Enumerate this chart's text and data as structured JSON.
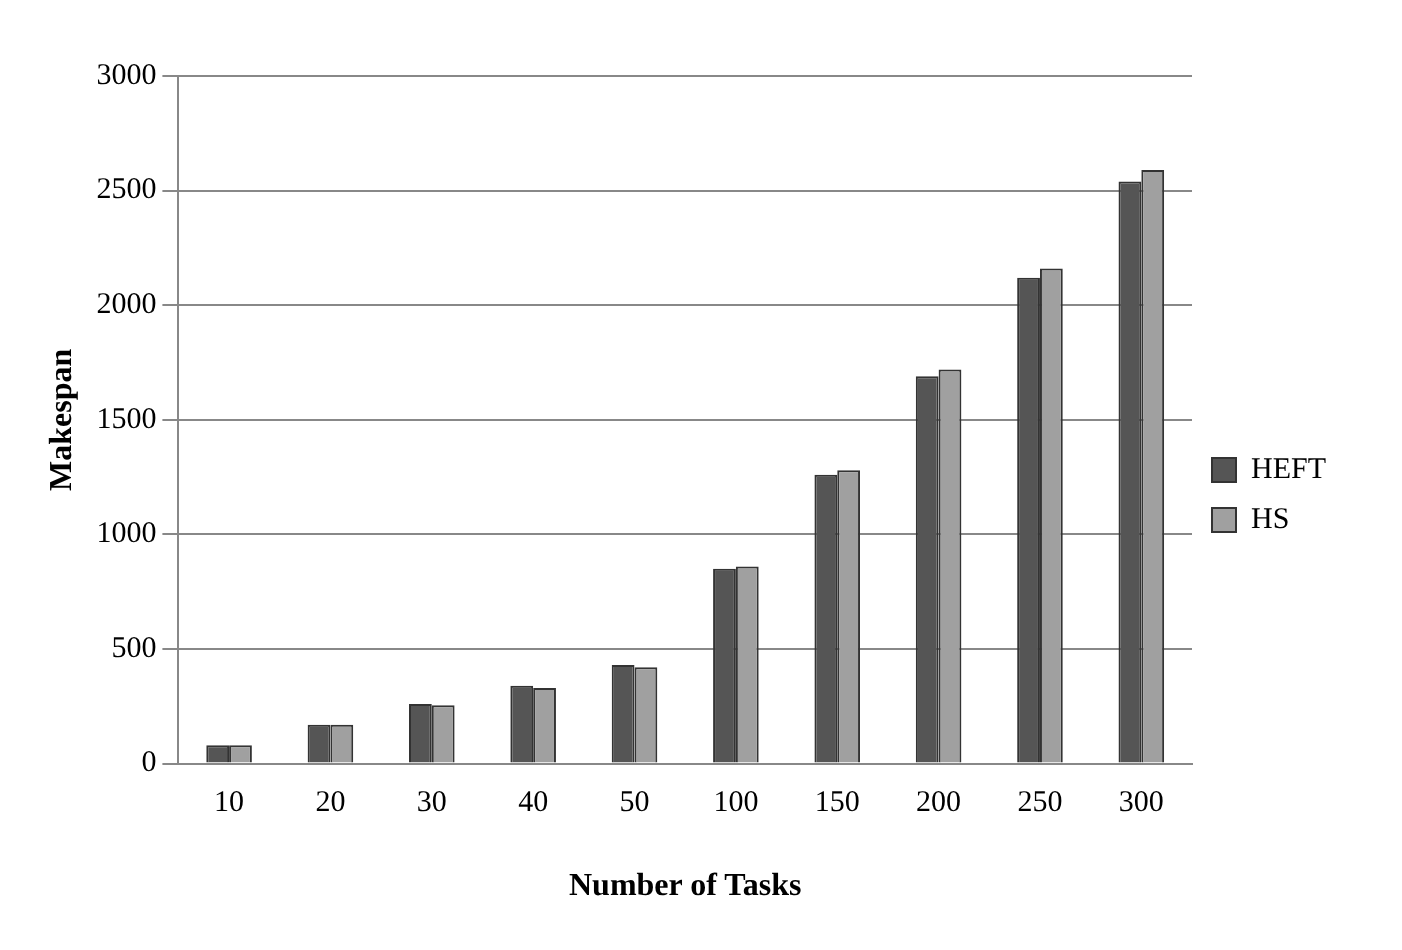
{
  "chart_data": {
    "type": "bar",
    "xlabel": "Number of Tasks",
    "ylabel": "Makespan",
    "categories": [
      "10",
      "20",
      "30",
      "40",
      "50",
      "100",
      "150",
      "200",
      "250",
      "300"
    ],
    "series": [
      {
        "name": "HEFT",
        "color": "#555555",
        "values": [
          80,
          170,
          260,
          340,
          430,
          850,
          1260,
          1690,
          2120,
          2540
        ]
      },
      {
        "name": "HS",
        "color": "#a0a0a0",
        "values": [
          80,
          170,
          255,
          330,
          420,
          860,
          1280,
          1720,
          2160,
          2590
        ]
      }
    ],
    "ylim": [
      0,
      3000
    ],
    "yticks": [
      0,
      500,
      1000,
      1500,
      2000,
      2500,
      3000
    ],
    "grid": "y",
    "legend": "right"
  }
}
